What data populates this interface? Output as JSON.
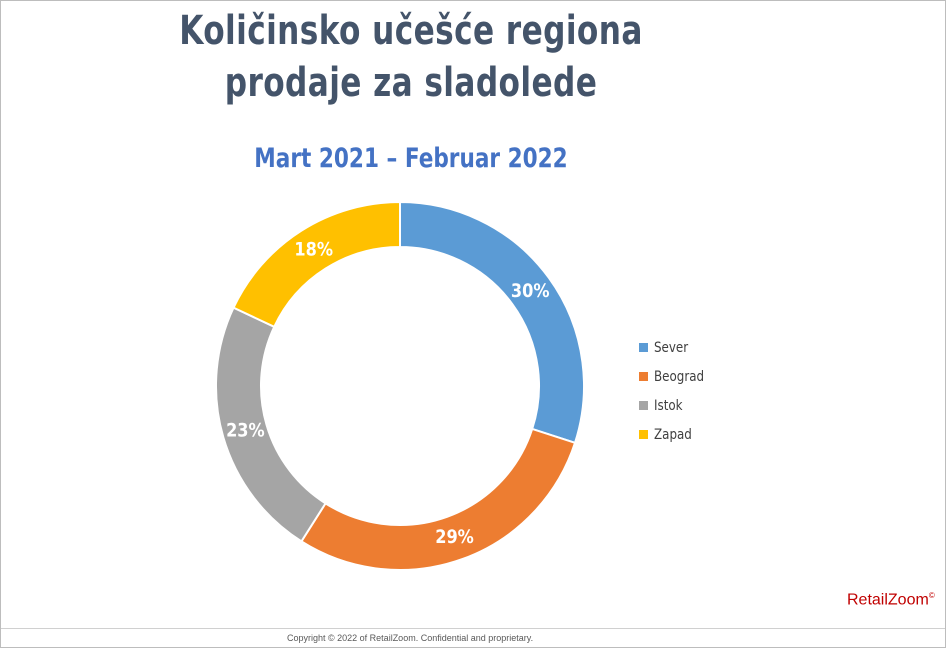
{
  "header": {
    "title": "Količinsko učešće regiona prodaje za sladolede",
    "subtitle": "Mart 2021 – Februar 2022"
  },
  "chart_data": {
    "type": "pie",
    "variant": "doughnut",
    "title": "Količinsko učešće regiona prodaje za sladolede",
    "subtitle": "Mart 2021 – Februar 2022",
    "categories": [
      "Sever",
      "Beograd",
      "Istok",
      "Zapad"
    ],
    "values": [
      30,
      29,
      23,
      18
    ],
    "labels": [
      "30%",
      "29%",
      "23%",
      "18%"
    ],
    "colors": [
      "#5b9bd5",
      "#ed7d31",
      "#a5a5a5",
      "#ffc000"
    ],
    "legend_position": "right"
  },
  "legend": {
    "items": [
      {
        "label": "Sever",
        "color": "#5b9bd5"
      },
      {
        "label": "Beograd",
        "color": "#ed7d31"
      },
      {
        "label": "Istok",
        "color": "#a5a5a5"
      },
      {
        "label": "Zapad",
        "color": "#ffc000"
      }
    ]
  },
  "brand": {
    "name": "RetailZoom",
    "mark": "©"
  },
  "footer": {
    "copyright": "Copyright © 2022 of RetailZoom. Confidential and proprietary."
  }
}
